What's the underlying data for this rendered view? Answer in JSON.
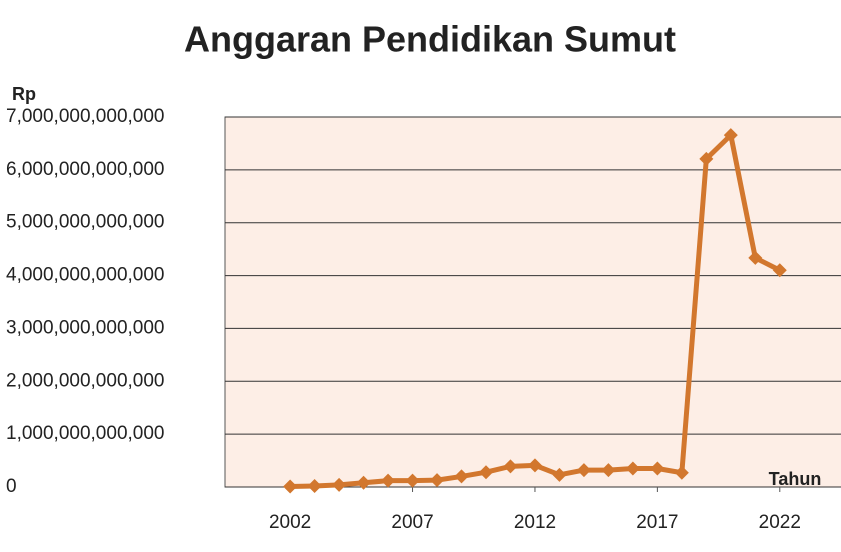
{
  "chart_data": {
    "type": "line",
    "title": "Anggaran Pendidikan Sumut",
    "y_label": "Rp",
    "x_label": "Tahun",
    "x": [
      2002,
      2003,
      2004,
      2005,
      2006,
      2007,
      2008,
      2009,
      2010,
      2011,
      2012,
      2013,
      2014,
      2015,
      2016,
      2017,
      2018,
      2019,
      2020,
      2021,
      2022
    ],
    "series": [
      {
        "name": "Anggaran",
        "color": "#d2772e",
        "values": [
          10000000000,
          20000000000,
          40000000000,
          80000000000,
          120000000000,
          120000000000,
          130000000000,
          200000000000,
          280000000000,
          390000000000,
          410000000000,
          230000000000,
          320000000000,
          320000000000,
          350000000000,
          350000000000,
          270000000000,
          6208045000000,
          6656776000000,
          4335400000000,
          4100000000000
        ]
      }
    ],
    "xlim": [
      1999.34,
      2024.5
    ],
    "xticks": [
      2002,
      2007,
      2012,
      2017,
      2022
    ],
    "ylim": [
      0,
      7000000000000
    ],
    "yticks": [
      {
        "value": 0,
        "label": "0"
      },
      {
        "value": 1000000000000,
        "label": "1,000,000,000,000"
      },
      {
        "value": 2000000000000,
        "label": "2,000,000,000,000"
      },
      {
        "value": 3000000000000,
        "label": "3,000,000,000,000"
      },
      {
        "value": 4000000000000,
        "label": "4,000,000,000,000"
      },
      {
        "value": 5000000000000,
        "label": "5,000,000,000,000"
      },
      {
        "value": 6000000000000,
        "label": "6,000,000,000,000"
      },
      {
        "value": 7000000000000,
        "label": "7,000,000,000,000"
      }
    ],
    "grid": true
  }
}
